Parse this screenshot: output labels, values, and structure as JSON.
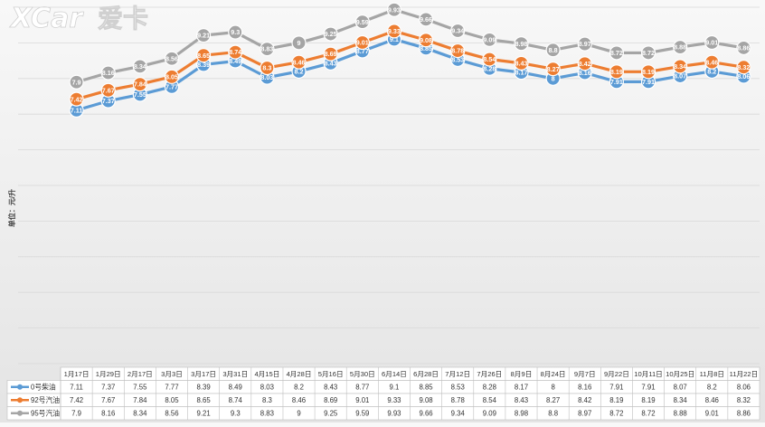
{
  "watermark": {
    "brand_latin": "XCar",
    "brand_cn": "爱卡"
  },
  "unit_label": "单位：元/升",
  "colors": {
    "series_0": "#5b9bd5",
    "series_92": "#ed7d31",
    "series_95": "#a5a5a5",
    "grid": "#d9d9d9",
    "table_border": "#bfbfbf"
  },
  "chart_data": {
    "type": "line",
    "title": "",
    "ylabel": "单位：元/升",
    "ylim": [
      0,
      10
    ],
    "grid": true,
    "legend_placement": "table-bottom",
    "categories": [
      "1月17日",
      "1月29日",
      "2月17日",
      "3月3日",
      "3月17日",
      "3月31日",
      "4月15日",
      "4月28日",
      "5月16日",
      "5月30日",
      "6月14日",
      "6月28日",
      "7月12日",
      "7月26日",
      "8月9日",
      "8月24日",
      "9月7日",
      "9月22日",
      "10月11日",
      "10月25日",
      "11月8日",
      "11月22日"
    ],
    "series": [
      {
        "name": "0号柴油",
        "values": [
          7.11,
          7.37,
          7.55,
          7.77,
          8.39,
          8.49,
          8.03,
          8.2,
          8.43,
          8.77,
          9.1,
          8.85,
          8.53,
          8.28,
          8.17,
          8,
          8.16,
          7.91,
          7.91,
          8.07,
          8.2,
          8.06
        ]
      },
      {
        "name": "92号汽油",
        "values": [
          7.42,
          7.67,
          7.84,
          8.05,
          8.65,
          8.74,
          8.3,
          8.46,
          8.69,
          9.01,
          9.33,
          9.08,
          8.78,
          8.54,
          8.43,
          8.27,
          8.42,
          8.19,
          8.19,
          8.34,
          8.46,
          8.32
        ]
      },
      {
        "name": "95号汽油",
        "values": [
          7.9,
          8.16,
          8.34,
          8.56,
          9.21,
          9.3,
          8.83,
          9,
          9.25,
          9.59,
          9.93,
          9.66,
          9.34,
          9.09,
          8.98,
          8.8,
          8.97,
          8.72,
          8.72,
          8.88,
          9.01,
          8.86
        ]
      }
    ]
  }
}
